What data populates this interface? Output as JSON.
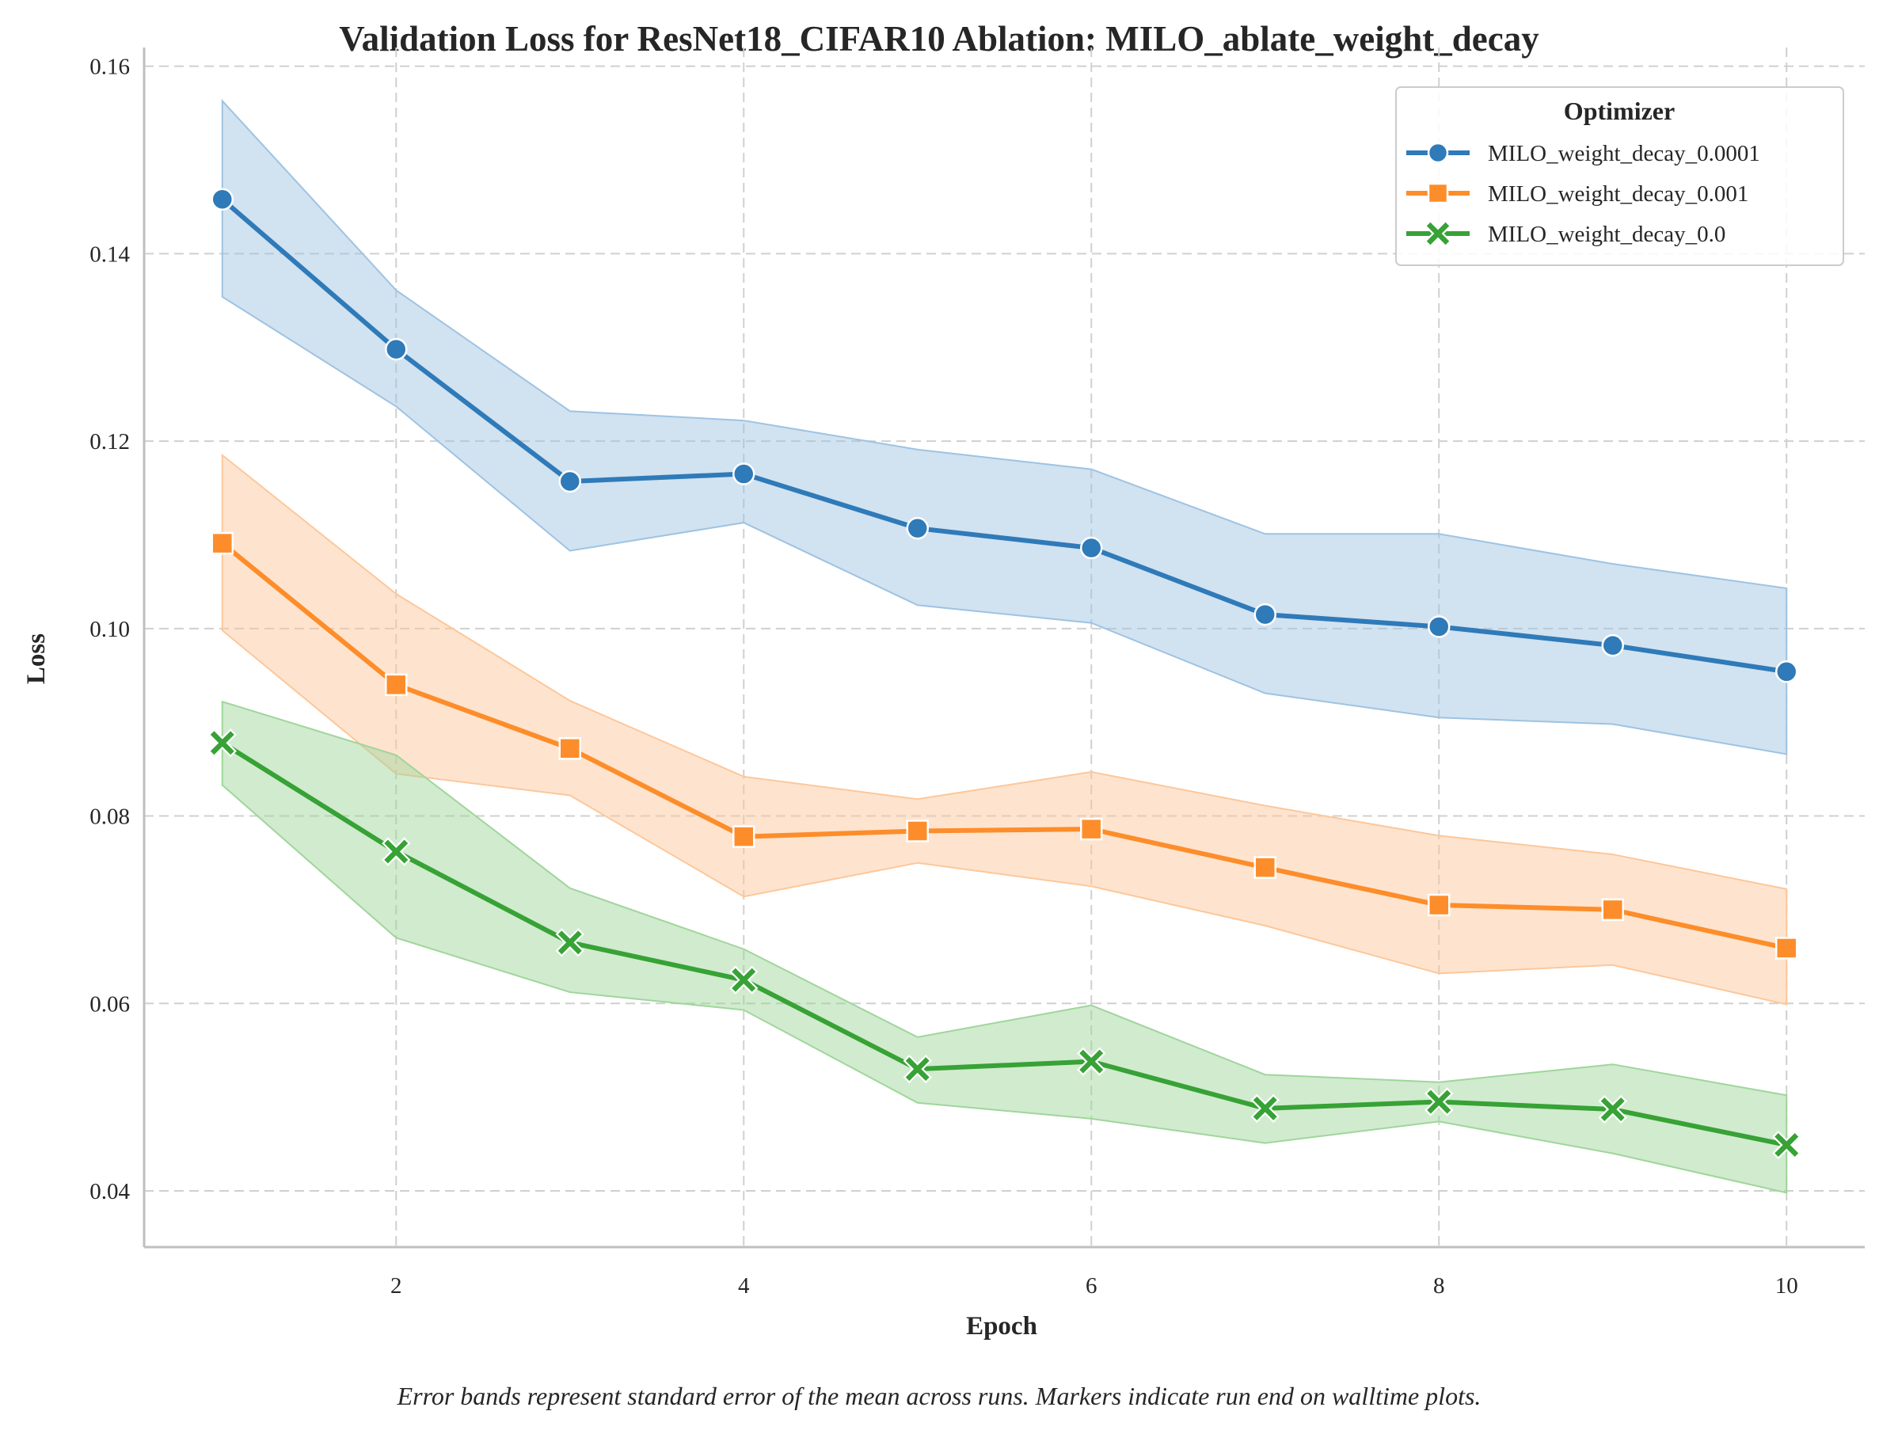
{
  "chart_data": {
    "type": "line",
    "title": "Validation Loss for ResNet18_CIFAR10 Ablation: MILO_ablate_weight_decay",
    "xlabel": "Epoch",
    "ylabel": "Loss",
    "caption": "Error bands represent standard error of the mean across runs. Markers indicate run end on walltime plots.",
    "x": [
      1,
      2,
      3,
      4,
      5,
      6,
      7,
      8,
      9,
      10
    ],
    "xlim": [
      0.55,
      10.45
    ],
    "ylim": [
      0.034,
      0.162
    ],
    "xticks": [
      2,
      4,
      6,
      8,
      10
    ],
    "yticks": [
      0.04,
      0.06,
      0.08,
      0.1,
      0.12,
      0.14,
      0.16
    ],
    "xtick_labels": [
      "2",
      "4",
      "6",
      "8",
      "10"
    ],
    "ytick_labels": [
      "0.04",
      "0.06",
      "0.08",
      "0.10",
      "0.12",
      "0.14",
      "0.16"
    ],
    "grid": true,
    "grid_style": "dashed",
    "legend": {
      "title": "Optimizer",
      "position": "top-right"
    },
    "series": [
      {
        "name": "MILO_weight_decay_0.0001",
        "color": "#2f7ab8",
        "band_color": "#9ec3e2",
        "marker": "circle",
        "values": [
          0.1458,
          0.1298,
          0.1157,
          0.1165,
          0.1107,
          0.1086,
          0.1015,
          0.1002,
          0.0982,
          0.0954
        ],
        "upper": [
          0.1563,
          0.1361,
          0.1232,
          0.1222,
          0.1191,
          0.117,
          0.1101,
          0.1101,
          0.1069,
          0.1043
        ],
        "lower": [
          0.1354,
          0.1237,
          0.1083,
          0.1113,
          0.1025,
          0.1006,
          0.0931,
          0.0905,
          0.0898,
          0.0866
        ]
      },
      {
        "name": "MILO_weight_decay_0.001",
        "color": "#fd8d2a",
        "band_color": "#fdc79a",
        "marker": "square",
        "values": [
          0.1091,
          0.094,
          0.0872,
          0.0778,
          0.0784,
          0.0786,
          0.0745,
          0.0705,
          0.07,
          0.0659
        ],
        "upper": [
          0.1185,
          0.1037,
          0.0923,
          0.0842,
          0.0818,
          0.0847,
          0.0811,
          0.0779,
          0.0759,
          0.0722
        ],
        "lower": [
          0.0998,
          0.0845,
          0.0822,
          0.0714,
          0.075,
          0.0725,
          0.0683,
          0.0632,
          0.0641,
          0.0599
        ]
      },
      {
        "name": "MILO_weight_decay_0.0",
        "color": "#37a235",
        "band_color": "#9fd69a",
        "marker": "x",
        "values": [
          0.0878,
          0.0762,
          0.0665,
          0.0625,
          0.053,
          0.0538,
          0.0488,
          0.0495,
          0.0487,
          0.0449
        ],
        "upper": [
          0.0922,
          0.0865,
          0.0723,
          0.0658,
          0.0564,
          0.0598,
          0.0524,
          0.0516,
          0.0535,
          0.0502
        ],
        "lower": [
          0.0833,
          0.067,
          0.0612,
          0.0593,
          0.0494,
          0.0477,
          0.0451,
          0.0474,
          0.044,
          0.0398
        ]
      }
    ]
  }
}
